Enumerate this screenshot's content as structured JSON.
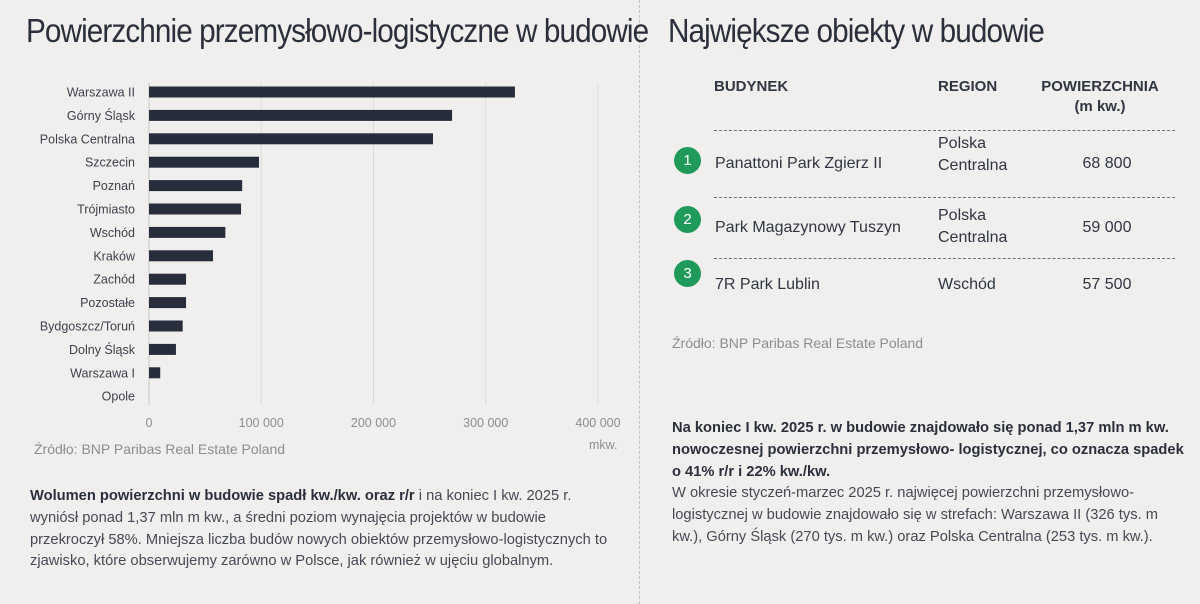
{
  "left": {
    "title": "Powierzchnie przemysłowo-logistyczne w budowie",
    "source": "Źródło: BNP Paribas Real Estate Poland",
    "unit": "mkw.",
    "paragraph_bold": "Wolumen powierzchni w budowie spadł kw./kw. oraz r/r",
    "paragraph_rest": " i na koniec I kw. 2025 r. wyniósł ponad 1,37 mln m kw., a średni poziom wynajęcia projektów w budowie przekroczył 58%. Mniejsza liczba budów nowych obiektów przemysłowo-logistycznych to zjawisko, które obserwujemy zarówno w Polsce, jak również w ujęciu globalnym."
  },
  "right": {
    "title": "Największe obiekty w budowie",
    "headers": {
      "building": "BUDYNEK",
      "region": "REGION",
      "area": "POWIERZCHNIA\n(m kw.)"
    },
    "rows": [
      {
        "num": "1",
        "building": "Panattoni Park Zgierz II",
        "region": "Polska Centralna",
        "area": "68 800"
      },
      {
        "num": "2",
        "building": "Park Magazynowy Tuszyn",
        "region": "Polska Centralna",
        "area": "59 000"
      },
      {
        "num": "3",
        "building": "7R Park Lublin",
        "region": "Wschód",
        "area": "57 500"
      }
    ],
    "source": "Źródło: BNP Paribas Real Estate Poland",
    "paragraph_bold": "Na koniec I kw. 2025 r. w budowie znajdowało się ponad 1,37 mln m kw. nowoczesnej powierzchni przemysłowo- logistycznej, co oznacza spadek o 41% r/r i 22% kw./kw.",
    "paragraph_rest": "W okresie styczeń-marzec 2025 r. najwięcej powierzchni przemysłowo-logistycznej w budowie znajdowało się w strefach: Warszawa II (326 tys. m kw.), Górny Śląsk (270 tys. m kw.) oraz Polska Centralna (253 tys. m kw.)."
  },
  "colors": {
    "bar": "#272d3a",
    "badge": "#1f9a5a",
    "grid": "#dcdcdc"
  },
  "chart_data": {
    "type": "bar",
    "orientation": "horizontal",
    "categories": [
      "Warszawa II",
      "Górny Śląsk",
      "Polska Centralna",
      "Szczecin",
      "Poznań",
      "Trójmiasto",
      "Wschód",
      "Kraków",
      "Zachód",
      "Pozostałe",
      "Bydgoszcz/Toruń",
      "Dolny Śląsk",
      "Warszawa I",
      "Opole"
    ],
    "values": [
      326000,
      270000,
      253000,
      98000,
      83000,
      82000,
      68000,
      57000,
      33000,
      33000,
      30000,
      24000,
      10000,
      0
    ],
    "xlim": [
      0,
      400000
    ],
    "xticks": [
      0,
      100000,
      200000,
      300000,
      400000
    ],
    "xtick_labels": [
      "0",
      "100 000",
      "200 000",
      "300 000",
      "400 000"
    ],
    "xlabel": "mkw.",
    "grid": "vertical"
  }
}
